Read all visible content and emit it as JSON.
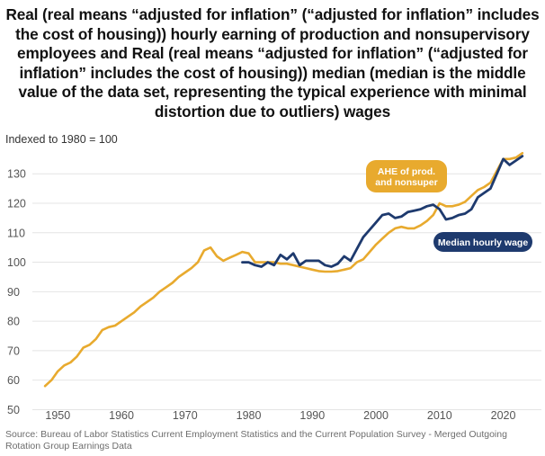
{
  "chart_data": {
    "type": "line",
    "title": "Real (real means “adjusted for inflation” (“adjusted for inflation” includes the cost of housing)) hourly earning of production and nonsupervisory employees and Real (real means “adjusted for inflation” (“adjusted for inflation” includes the cost of housing)) median (median is the middle value of the data set, representing the typical experience with minimal distortion due to outliers) wages",
    "subtitle": "Indexed to 1980 = 100",
    "source": "Source: Bureau of Labor Statistics Current Employment Statistics and the Current Population Survey - Merged Outgoing Rotation Group Earnings Data",
    "xlim": [
      1946,
      2026
    ],
    "ylim": [
      48,
      138
    ],
    "x_ticks": [
      1950,
      1960,
      1970,
      1980,
      1990,
      2000,
      2010,
      2020
    ],
    "y_ticks": [
      50,
      60,
      70,
      80,
      90,
      100,
      110,
      120,
      130
    ],
    "grid": "horizontal",
    "series": [
      {
        "name": "AHE of prod. and nonsuper",
        "color": "#e8aa2e",
        "x": [
          1948,
          1949,
          1950,
          1951,
          1952,
          1953,
          1954,
          1955,
          1956,
          1957,
          1958,
          1959,
          1960,
          1961,
          1962,
          1963,
          1964,
          1965,
          1966,
          1967,
          1968,
          1969,
          1970,
          1971,
          1972,
          1973,
          1974,
          1975,
          1976,
          1977,
          1978,
          1979,
          1980,
          1981,
          1982,
          1983,
          1984,
          1985,
          1986,
          1987,
          1988,
          1989,
          1990,
          1991,
          1992,
          1993,
          1994,
          1995,
          1996,
          1997,
          1998,
          1999,
          2000,
          2001,
          2002,
          2003,
          2004,
          2005,
          2006,
          2007,
          2008,
          2009,
          2010,
          2011,
          2012,
          2013,
          2014,
          2015,
          2016,
          2017,
          2018,
          2019,
          2020,
          2021,
          2022,
          2023,
          2024
        ],
        "values": [
          58,
          60,
          63,
          65,
          66,
          68,
          71,
          72,
          74,
          77,
          78,
          78.5,
          80,
          81.5,
          83,
          85,
          86.5,
          88,
          90,
          91.5,
          93,
          95,
          96.5,
          98,
          100,
          104,
          105,
          102,
          100.5,
          101.5,
          102.5,
          103.5,
          103,
          100,
          100,
          100,
          100,
          99.5,
          99.5,
          99,
          98.5,
          98,
          97.5,
          97,
          96.8,
          96.8,
          97,
          97.5,
          98,
          100,
          101,
          103.5,
          106,
          108,
          110,
          111.5,
          112,
          111.5,
          111.5,
          112.5,
          114,
          116,
          120,
          119,
          119,
          119.5,
          120.5,
          122.5,
          124.5,
          125.5,
          127,
          131,
          135,
          135,
          135.5,
          137,
          null
        ]
      },
      {
        "name": "Median hourly wage",
        "color": "#1e3a6e",
        "x": [
          1979,
          1980,
          1981,
          1982,
          1983,
          1984,
          1985,
          1986,
          1987,
          1988,
          1989,
          1990,
          1991,
          1992,
          1993,
          1994,
          1995,
          1996,
          1997,
          1998,
          1999,
          2000,
          2001,
          2002,
          2003,
          2004,
          2005,
          2006,
          2007,
          2008,
          2009,
          2010,
          2011,
          2012,
          2013,
          2014,
          2015,
          2016,
          2017,
          2018,
          2019,
          2020,
          2021,
          2022,
          2023
        ],
        "values": [
          100,
          100,
          99,
          98.5,
          100,
          99,
          102.5,
          101,
          103,
          99,
          100.5,
          100.5,
          100.5,
          99,
          98.5,
          99.5,
          102,
          100.5,
          104.5,
          108.5,
          111,
          113.5,
          116,
          116.5,
          115,
          115.5,
          117,
          117.5,
          118,
          119,
          119.5,
          118,
          114.5,
          115,
          116,
          116.5,
          118,
          122,
          123.5,
          125,
          130,
          135,
          133,
          134.5,
          136
        ]
      }
    ],
    "legend": [
      {
        "label": "AHE of prod.\nand nonsuper",
        "color": "#e8aa2e",
        "text_color": "#ffffff",
        "placement": "upper-middle-right"
      },
      {
        "label": "Median hourly wage",
        "color": "#1e3a6e",
        "text_color": "#ffffff",
        "placement": "middle-right"
      }
    ]
  }
}
